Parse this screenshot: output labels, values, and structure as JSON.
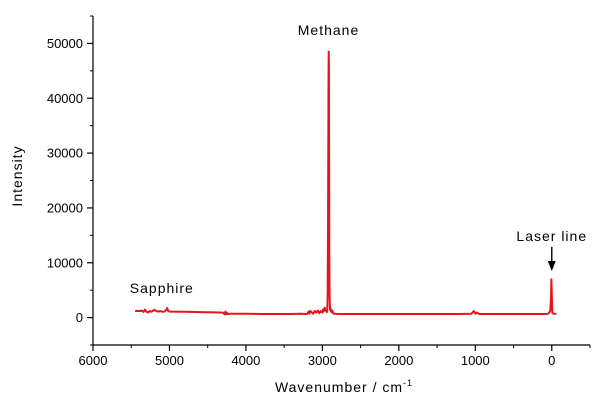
{
  "chart_data": {
    "type": "line",
    "title": "",
    "xlabel": "Wavenumber / cm",
    "xlabel_sup": "-1",
    "ylabel": "Intensity",
    "x_reversed": true,
    "xlim": [
      6000,
      -500
    ],
    "ylim": [
      -5000,
      55000
    ],
    "x_ticks": [
      6000,
      5000,
      4000,
      3000,
      2000,
      1000,
      0
    ],
    "x_tick_labels": [
      "6000",
      "5000",
      "4000",
      "3000",
      "2000",
      "1000",
      "0"
    ],
    "y_ticks": [
      0,
      10000,
      20000,
      30000,
      40000,
      50000
    ],
    "y_tick_labels": [
      "0",
      "10000",
      "20000",
      "30000",
      "40000",
      "50000"
    ],
    "grid": false,
    "series": [
      {
        "color": "#e8141b",
        "x": [
          5450,
          5380,
          5360,
          5340,
          5320,
          5300,
          5280,
          5260,
          5240,
          5220,
          5200,
          5180,
          5150,
          5120,
          5100,
          5080,
          5060,
          5040,
          5030,
          5020,
          5010,
          5000,
          4950,
          4800,
          4600,
          4400,
          4300,
          4280,
          4270,
          4260,
          4250,
          4240,
          4200,
          4000,
          3800,
          3600,
          3400,
          3300,
          3200,
          3180,
          3170,
          3160,
          3120,
          3100,
          3080,
          3060,
          3040,
          3020,
          3000,
          2990,
          2980,
          2970,
          2960,
          2950,
          2940,
          2935,
          2930,
          2925,
          2920,
          2917,
          2915,
          2912,
          2910,
          2905,
          2900,
          2895,
          2890,
          2880,
          2870,
          2860,
          2850,
          2840,
          2800,
          2600,
          2400,
          2200,
          2000,
          1800,
          1600,
          1400,
          1200,
          1050,
          1020,
          1000,
          980,
          950,
          800,
          600,
          400,
          200,
          60,
          40,
          20,
          10,
          5,
          0,
          -5,
          -10,
          -20,
          -40,
          -60
        ],
        "y": [
          1200,
          1200,
          1300,
          1000,
          1450,
          1100,
          900,
          1200,
          1050,
          1200,
          1400,
          1250,
          1100,
          1200,
          1100,
          1050,
          1150,
          1450,
          1750,
          1300,
          1150,
          1100,
          1100,
          1050,
          1000,
          950,
          900,
          600,
          1100,
          600,
          900,
          650,
          700,
          700,
          650,
          650,
          650,
          700,
          650,
          1100,
          700,
          1200,
          700,
          1200,
          900,
          1300,
          800,
          1200,
          900,
          1500,
          1200,
          1800,
          1300,
          1400,
          1000,
          2000,
          5000,
          20000,
          43000,
          48500,
          46000,
          30000,
          12000,
          4000,
          1400,
          1800,
          1200,
          1000,
          1300,
          800,
          700,
          700,
          650,
          650,
          650,
          650,
          650,
          650,
          650,
          650,
          650,
          700,
          1200,
          700,
          900,
          650,
          650,
          650,
          650,
          650,
          650,
          800,
          1200,
          3500,
          7000,
          4000,
          1500,
          800,
          700,
          700,
          700
        ]
      }
    ],
    "annotations": [
      {
        "text": "Methane",
        "x": 2920,
        "y": 51500
      },
      {
        "text": "Sapphire",
        "x": 5100,
        "y": 4500
      },
      {
        "text": "Laser line",
        "x": 0,
        "y": 14000,
        "arrow_to_y": 8500
      }
    ]
  }
}
